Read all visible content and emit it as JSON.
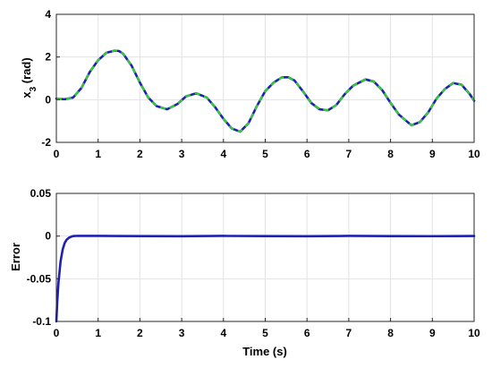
{
  "chart_data": [
    {
      "type": "line",
      "ylabel": "x",
      "ylabel_sub": "3",
      "ylabel_unit": " (rad)",
      "xlim": [
        0,
        10
      ],
      "ylim": [
        -2,
        4
      ],
      "xticks": [
        "0",
        "1",
        "2",
        "3",
        "4",
        "5",
        "6",
        "7",
        "8",
        "9",
        "10"
      ],
      "yticks": [
        "-2",
        "0",
        "2",
        "4"
      ],
      "grid": true,
      "series": [
        {
          "style": "solid",
          "color": "#1f1fb4",
          "x": [
            0,
            0.2,
            0.4,
            0.6,
            0.8,
            1.0,
            1.2,
            1.4,
            1.5,
            1.6,
            1.8,
            2.0,
            2.2,
            2.4,
            2.65,
            2.9,
            3.1,
            3.35,
            3.6,
            3.8,
            4.0,
            4.2,
            4.4,
            4.6,
            4.8,
            5.0,
            5.2,
            5.4,
            5.55,
            5.7,
            5.9,
            6.1,
            6.3,
            6.5,
            6.7,
            6.9,
            7.1,
            7.4,
            7.6,
            7.8,
            8.0,
            8.2,
            8.5,
            8.7,
            8.9,
            9.1,
            9.3,
            9.5,
            9.7,
            9.9,
            10.0
          ],
          "y": [
            0.05,
            0.02,
            0.1,
            0.55,
            1.3,
            1.85,
            2.2,
            2.3,
            2.28,
            2.15,
            1.6,
            0.8,
            0.1,
            -0.3,
            -0.45,
            -0.2,
            0.15,
            0.3,
            0.1,
            -0.35,
            -0.9,
            -1.35,
            -1.5,
            -1.1,
            -0.3,
            0.4,
            0.8,
            1.05,
            1.05,
            0.9,
            0.4,
            -0.15,
            -0.45,
            -0.5,
            -0.25,
            0.25,
            0.65,
            0.95,
            0.85,
            0.45,
            -0.15,
            -0.7,
            -1.2,
            -1.05,
            -0.6,
            0.05,
            0.5,
            0.78,
            0.7,
            0.25,
            -0.05
          ]
        },
        {
          "style": "dashed",
          "color": "#33cc33",
          "x": [
            0,
            0.2,
            0.4,
            0.6,
            0.8,
            1.0,
            1.2,
            1.4,
            1.5,
            1.6,
            1.8,
            2.0,
            2.2,
            2.4,
            2.65,
            2.9,
            3.1,
            3.35,
            3.6,
            3.8,
            4.0,
            4.2,
            4.4,
            4.6,
            4.8,
            5.0,
            5.2,
            5.4,
            5.55,
            5.7,
            5.9,
            6.1,
            6.3,
            6.5,
            6.7,
            6.9,
            7.1,
            7.4,
            7.6,
            7.8,
            8.0,
            8.2,
            8.5,
            8.7,
            8.9,
            9.1,
            9.3,
            9.5,
            9.7,
            9.9,
            10.0
          ],
          "y": [
            0.05,
            0.02,
            0.1,
            0.55,
            1.3,
            1.85,
            2.2,
            2.3,
            2.28,
            2.15,
            1.6,
            0.8,
            0.1,
            -0.3,
            -0.45,
            -0.2,
            0.15,
            0.3,
            0.1,
            -0.35,
            -0.9,
            -1.35,
            -1.5,
            -1.1,
            -0.3,
            0.4,
            0.8,
            1.05,
            1.05,
            0.9,
            0.4,
            -0.15,
            -0.45,
            -0.5,
            -0.25,
            0.25,
            0.65,
            0.95,
            0.85,
            0.45,
            -0.15,
            -0.7,
            -1.2,
            -1.05,
            -0.6,
            0.05,
            0.5,
            0.78,
            0.7,
            0.25,
            -0.05
          ]
        }
      ]
    },
    {
      "type": "line",
      "xlabel": "Time (s)",
      "ylabel": "Error",
      "xlim": [
        0,
        10
      ],
      "ylim": [
        -0.1,
        0.05
      ],
      "xticks": [
        "0",
        "1",
        "2",
        "3",
        "4",
        "5",
        "6",
        "7",
        "8",
        "9",
        "10"
      ],
      "yticks": [
        "-0.1",
        "-0.05",
        "0",
        "0.05"
      ],
      "grid": true,
      "series": [
        {
          "style": "solid",
          "color": "#1f1fb4",
          "x": [
            0,
            0.02,
            0.05,
            0.1,
            0.15,
            0.2,
            0.25,
            0.3,
            0.35,
            0.4,
            0.5,
            1.0,
            2.0,
            3.0,
            4.0,
            5.0,
            6.0,
            7.0,
            8.0,
            9.0,
            10.0
          ],
          "y": [
            -0.1,
            -0.078,
            -0.055,
            -0.03,
            -0.016,
            -0.008,
            -0.004,
            -0.002,
            -0.0008,
            0,
            0.0003,
            0.0002,
            0,
            -0.0002,
            0.0002,
            0,
            -0.0002,
            0.0002,
            0,
            -0.0001,
            0.0001
          ]
        }
      ]
    }
  ]
}
